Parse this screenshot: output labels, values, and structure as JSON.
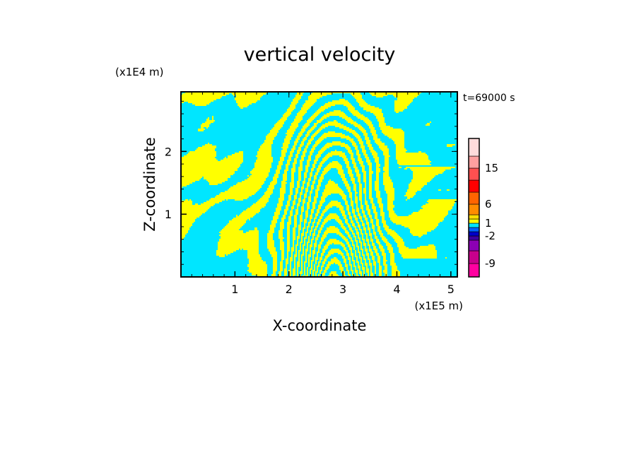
{
  "chart_data": {
    "type": "heatmap",
    "title": "vertical velocity",
    "xlabel": "X-coordinate",
    "ylabel": "Z-coordinate",
    "x_scale_note": "(x1E5 m)",
    "y_scale_note": "(x1E4 m)",
    "time_label": "t=69000 s",
    "x_ticks": [
      "1",
      "2",
      "3",
      "4",
      "5"
    ],
    "x_tick_values": [
      1,
      2,
      3,
      4,
      5
    ],
    "y_ticks": [
      "1",
      "2"
    ],
    "y_tick_values": [
      1,
      2
    ],
    "xlim": [
      0,
      5.12
    ],
    "ylim": [
      0,
      2.95
    ],
    "colorbar": {
      "labels": [
        "15",
        "6",
        "1",
        "-2",
        "-9"
      ],
      "label_values": [
        15,
        6,
        1,
        -2,
        -9
      ],
      "levels": [
        -12,
        -9,
        -6,
        -3,
        -2,
        -1,
        0,
        1,
        2,
        3,
        6,
        9,
        12,
        15,
        18,
        21
      ],
      "colors": [
        "#ff00a0",
        "#c8008c",
        "#8c00b4",
        "#3c00a0",
        "#0000c8",
        "#0064ff",
        "#00e6ff",
        "#ffff00",
        "#ffdc00",
        "#ff8c00",
        "#ff6400",
        "#ff0000",
        "#ff5050",
        "#ffa0a0",
        "#ffdcdc"
      ]
    },
    "field_colors": {
      "negative": "#00e6ff",
      "positive": "#ffff00"
    }
  }
}
